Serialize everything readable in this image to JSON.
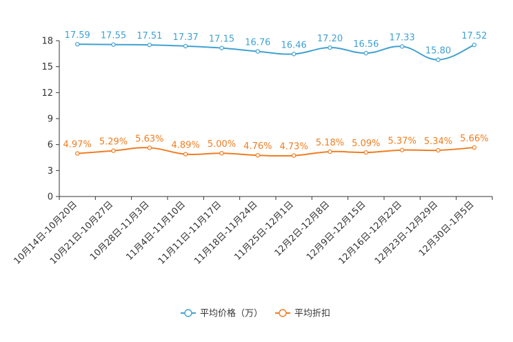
{
  "chart_data": {
    "type": "line",
    "categories": [
      "10月14日-10月20日",
      "10月21日-10月27日",
      "10月28日-11月3日",
      "11月4日-11月10日",
      "11月11日-11月17日",
      "11月18日-11月24日",
      "11月25日-12月1日",
      "12月2日-12月8日",
      "12月9日-12月15日",
      "12月16日-12月22日",
      "12月23日-12月29日",
      "12月30日-1月5日"
    ],
    "yticks": [
      0,
      3,
      6,
      9,
      12,
      15,
      18
    ],
    "ylim": [
      0,
      18
    ],
    "series": [
      {
        "name": "平均价格（万）",
        "color": "#3fa1d1",
        "values": [
          17.59,
          17.55,
          17.51,
          17.37,
          17.15,
          16.76,
          16.46,
          17.2,
          16.56,
          17.33,
          15.8,
          17.52
        ],
        "labels": [
          "17.59",
          "17.55",
          "17.51",
          "17.37",
          "17.15",
          "16.76",
          "16.46",
          "17.20",
          "16.56",
          "17.33",
          "15.80",
          "17.52"
        ]
      },
      {
        "name": "平均折扣",
        "color": "#f07c1e",
        "values": [
          4.97,
          5.29,
          5.63,
          4.89,
          5.0,
          4.76,
          4.73,
          5.18,
          5.09,
          5.37,
          5.34,
          5.66
        ],
        "labels": [
          "4.97%",
          "5.29%",
          "5.63%",
          "4.89%",
          "5.00%",
          "4.76%",
          "4.73%",
          "5.18%",
          "5.09%",
          "5.37%",
          "5.34%",
          "5.66%"
        ]
      }
    ],
    "legend_position": "bottom-center",
    "grid": false
  }
}
